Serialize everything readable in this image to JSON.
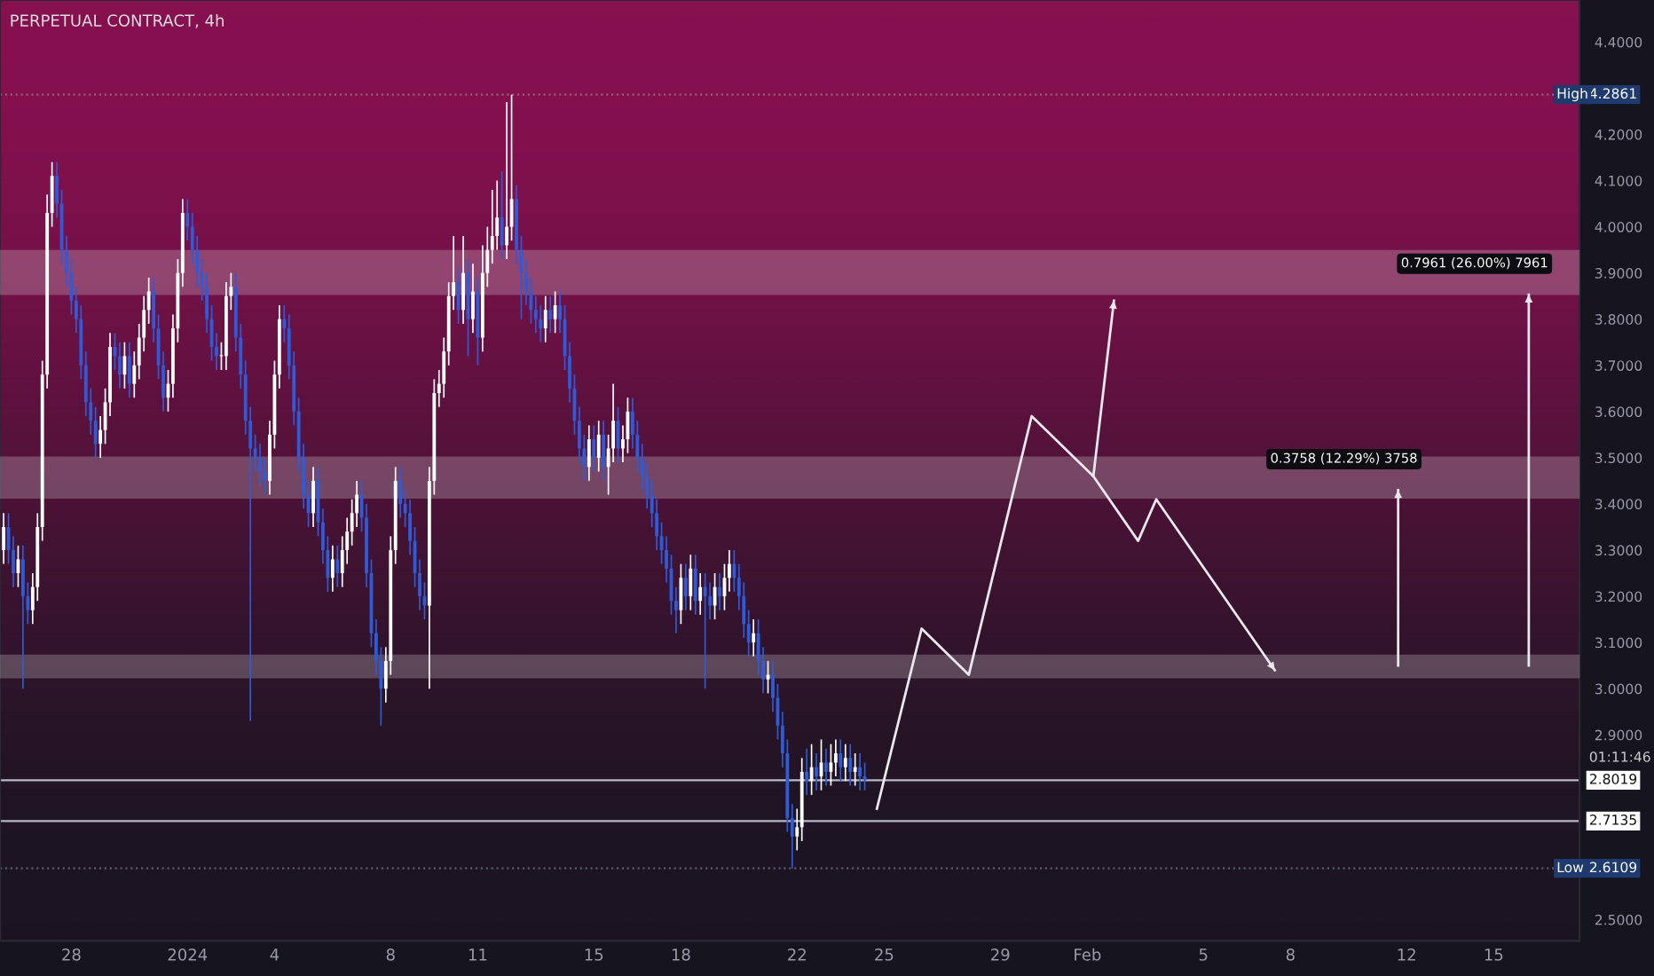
{
  "chart_data": {
    "type": "candlestick",
    "title": "PERPETUAL CONTRACT, 4h",
    "colors": [
      "#ffffff",
      "#2f5bd8",
      "#2f5bd8",
      "#ffffff",
      "#2f5bd8",
      "#2f5bd8",
      "#ffffff",
      "#ffffff",
      "#ffffff",
      "#ffffff",
      "#ffffff",
      "#2f5bd8",
      "#2f5bd8",
      "#2f5bd8",
      "#2f5bd8",
      "#2f5bd8",
      "#2f5bd8",
      "#2f5bd8",
      "#2f5bd8",
      "#2f5bd8",
      "#ffffff",
      "#ffffff",
      "#ffffff",
      "#2f5bd8",
      "#2f5bd8",
      "#ffffff",
      "#2f5bd8",
      "#ffffff",
      "#ffffff",
      "#ffffff",
      "#ffffff",
      "#2f5bd8",
      "#2f5bd8",
      "#2f5bd8",
      "#ffffff",
      "#ffffff",
      "#ffffff",
      "#ffffff",
      "#2f5bd8",
      "#2f5bd8",
      "#2f5bd8",
      "#2f5bd8",
      "#2f5bd8",
      "#2f5bd8",
      "#2f5bd8",
      "#ffffff",
      "#ffffff",
      "#ffffff",
      "#2f5bd8",
      "#2f5bd8",
      "#2f5bd8",
      "#2f5bd8",
      "#2f5bd8",
      "#2f5bd8",
      "#2f5bd8",
      "#ffffff",
      "#ffffff",
      "#ffffff",
      "#2f5bd8",
      "#2f5bd8",
      "#2f5bd8",
      "#2f5bd8",
      "#2f5bd8",
      "#2f5bd8",
      "#ffffff",
      "#2f5bd8",
      "#2f5bd8",
      "#2f5bd8",
      "#ffffff",
      "#2f5bd8",
      "#ffffff",
      "#ffffff",
      "#ffffff",
      "#ffffff",
      "#2f5bd8",
      "#2f5bd8",
      "#2f5bd8",
      "#2f5bd8",
      "#2f5bd8",
      "#ffffff",
      "#ffffff",
      "#ffffff",
      "#2f5bd8",
      "#2f5bd8",
      "#2f5bd8",
      "#2f5bd8",
      "#2f5bd8",
      "#2f5bd8",
      "#ffffff",
      "#ffffff",
      "#ffffff",
      "#ffffff",
      "#ffffff",
      "#ffffff",
      "#2f5bd8",
      "#ffffff",
      "#2f5bd8",
      "#ffffff",
      "#2f5bd8",
      "#ffffff",
      "#ffffff",
      "#ffffff",
      "#ffffff",
      "#2f5bd8",
      "#ffffff",
      "#ffffff",
      "#2f5bd8",
      "#2f5bd8",
      "#2f5bd8",
      "#2f5bd8",
      "#2f5bd8",
      "#2f5bd8",
      "#ffffff",
      "#2f5bd8",
      "#ffffff",
      "#2f5bd8",
      "#2f5bd8",
      "#2f5bd8",
      "#2f5bd8",
      "#2f5bd8",
      "#2f5bd8",
      "#ffffff",
      "#2f5bd8",
      "#ffffff",
      "#2f5bd8",
      "#ffffff",
      "#ffffff",
      "#2f5bd8",
      "#ffffff",
      "#ffffff",
      "#2f5bd8",
      "#2f5bd8",
      "#2f5bd8",
      "#2f5bd8",
      "#2f5bd8",
      "#2f5bd8",
      "#2f5bd8",
      "#2f5bd8",
      "#2f5bd8",
      "#2f5bd8",
      "#ffffff",
      "#2f5bd8",
      "#ffffff",
      "#2f5bd8",
      "#ffffff",
      "#2f5bd8",
      "#2f5bd8",
      "#ffffff",
      "#2f5bd8",
      "#ffffff",
      "#ffffff",
      "#2f5bd8",
      "#2f5bd8",
      "#2f5bd8",
      "#2f5bd8",
      "#ffffff",
      "#2f5bd8",
      "#2f5bd8",
      "#ffffff",
      "#2f5bd8",
      "#2f5bd8",
      "#2f5bd8",
      "#2f5bd8",
      "#2f5bd8",
      "#ffffff",
      "#ffffff",
      "#2f5bd8",
      "#ffffff",
      "#2f5bd8",
      "#ffffff",
      "#2f5bd8",
      "#ffffff",
      "#ffffff",
      "#2f5bd8",
      "#ffffff",
      "#2f5bd8",
      "#ffffff",
      "#2f5bd8",
      "#2f5bd8"
    ],
    "x": [
      "2023-12-25T16:00",
      "2023-12-25T20:00",
      "2023-12-26T00:00",
      "2023-12-26T04:00",
      "2023-12-26T08:00",
      "2023-12-26T12:00",
      "2023-12-26T16:00",
      "2023-12-26T20:00",
      "2023-12-27T00:00",
      "2023-12-27T04:00",
      "2023-12-27T08:00",
      "2023-12-27T12:00",
      "2023-12-27T16:00",
      "2023-12-27T20:00",
      "2023-12-28T00:00",
      "2023-12-28T04:00",
      "2023-12-28T08:00",
      "2023-12-28T12:00",
      "2023-12-28T16:00",
      "2023-12-28T20:00",
      "2023-12-29T00:00",
      "2023-12-29T04:00",
      "2023-12-29T08:00",
      "2023-12-29T12:00",
      "2023-12-29T16:00",
      "2023-12-29T20:00",
      "2023-12-30T00:00",
      "2023-12-30T04:00",
      "2023-12-30T08:00",
      "2023-12-30T12:00",
      "2023-12-30T16:00",
      "2023-12-30T20:00",
      "2023-12-31T00:00",
      "2023-12-31T04:00",
      "2023-12-31T08:00",
      "2023-12-31T12:00",
      "2023-12-31T16:00",
      "2023-12-31T20:00",
      "2024-01-01T00:00",
      "2024-01-01T04:00",
      "2024-01-01T08:00",
      "2024-01-01T12:00",
      "2024-01-01T16:00",
      "2024-01-01T20:00",
      "2024-01-02T00:00",
      "2024-01-02T04:00",
      "2024-01-02T08:00",
      "2024-01-02T12:00",
      "2024-01-02T16:00",
      "2024-01-02T20:00",
      "2024-01-03T00:00",
      "2024-01-03T04:00",
      "2024-01-03T08:00",
      "2024-01-03T12:00",
      "2024-01-03T16:00",
      "2024-01-03T20:00",
      "2024-01-04T00:00",
      "2024-01-04T04:00",
      "2024-01-04T08:00",
      "2024-01-04T12:00",
      "2024-01-04T16:00",
      "2024-01-04T20:00",
      "2024-01-05T00:00",
      "2024-01-05T04:00",
      "2024-01-05T08:00",
      "2024-01-05T12:00",
      "2024-01-05T16:00",
      "2024-01-05T20:00",
      "2024-01-06T00:00",
      "2024-01-06T04:00",
      "2024-01-06T08:00",
      "2024-01-06T12:00",
      "2024-01-06T16:00",
      "2024-01-06T20:00",
      "2024-01-07T00:00",
      "2024-01-07T04:00",
      "2024-01-07T08:00",
      "2024-01-07T12:00",
      "2024-01-07T16:00",
      "2024-01-07T20:00",
      "2024-01-08T00:00",
      "2024-01-08T04:00",
      "2024-01-08T08:00",
      "2024-01-08T12:00",
      "2024-01-08T16:00",
      "2024-01-08T20:00",
      "2024-01-09T00:00",
      "2024-01-09T04:00",
      "2024-01-09T08:00",
      "2024-01-09T12:00",
      "2024-01-09T16:00",
      "2024-01-09T20:00",
      "2024-01-10T00:00",
      "2024-01-10T04:00",
      "2024-01-10T08:00",
      "2024-01-10T12:00",
      "2024-01-10T16:00",
      "2024-01-10T20:00",
      "2024-01-11T00:00",
      "2024-01-11T04:00",
      "2024-01-11T08:00",
      "2024-01-11T12:00",
      "2024-01-11T16:00",
      "2024-01-11T20:00",
      "2024-01-12T00:00",
      "2024-01-12T04:00",
      "2024-01-12T08:00",
      "2024-01-12T12:00",
      "2024-01-12T16:00",
      "2024-01-12T20:00",
      "2024-01-13T00:00",
      "2024-01-13T04:00",
      "2024-01-13T08:00",
      "2024-01-13T12:00",
      "2024-01-13T16:00",
      "2024-01-13T20:00",
      "2024-01-14T00:00",
      "2024-01-14T04:00",
      "2024-01-14T08:00",
      "2024-01-14T12:00",
      "2024-01-14T16:00",
      "2024-01-14T20:00",
      "2024-01-15T00:00",
      "2024-01-15T04:00",
      "2024-01-15T08:00",
      "2024-01-15T12:00",
      "2024-01-15T16:00",
      "2024-01-15T20:00",
      "2024-01-16T00:00",
      "2024-01-16T04:00",
      "2024-01-16T08:00",
      "2024-01-16T12:00",
      "2024-01-16T16:00",
      "2024-01-16T20:00",
      "2024-01-17T00:00",
      "2024-01-17T04:00",
      "2024-01-17T08:00",
      "2024-01-17T12:00",
      "2024-01-17T16:00",
      "2024-01-17T20:00",
      "2024-01-18T00:00",
      "2024-01-18T04:00",
      "2024-01-18T08:00",
      "2024-01-18T12:00",
      "2024-01-18T16:00",
      "2024-01-18T20:00",
      "2024-01-19T00:00",
      "2024-01-19T04:00",
      "2024-01-19T08:00",
      "2024-01-19T12:00",
      "2024-01-19T16:00",
      "2024-01-19T20:00",
      "2024-01-20T00:00",
      "2024-01-20T04:00",
      "2024-01-20T08:00",
      "2024-01-20T12:00",
      "2024-01-20T16:00",
      "2024-01-20T20:00",
      "2024-01-21T00:00",
      "2024-01-21T04:00",
      "2024-01-21T08:00",
      "2024-01-21T12:00",
      "2024-01-21T16:00",
      "2024-01-21T20:00",
      "2024-01-22T00:00",
      "2024-01-22T04:00",
      "2024-01-22T08:00",
      "2024-01-22T12:00",
      "2024-01-22T16:00",
      "2024-01-22T20:00",
      "2024-01-23T00:00",
      "2024-01-23T04:00",
      "2024-01-23T08:00",
      "2024-01-23T12:00",
      "2024-01-23T16:00",
      "2024-01-23T20:00",
      "2024-01-24T00:00",
      "2024-01-24T04:00",
      "2024-01-24T08:00"
    ],
    "ohlc": [
      [
        3.3,
        3.38,
        3.27,
        3.35
      ],
      [
        3.35,
        3.38,
        3.27,
        3.3
      ],
      [
        3.3,
        3.33,
        3.22,
        3.25
      ],
      [
        3.25,
        3.31,
        3.22,
        3.28
      ],
      [
        3.28,
        3.31,
        3.0,
        3.2
      ],
      [
        3.2,
        3.23,
        3.14,
        3.17
      ],
      [
        3.17,
        3.25,
        3.14,
        3.22
      ],
      [
        3.22,
        3.38,
        3.19,
        3.35
      ],
      [
        3.35,
        3.71,
        3.32,
        3.68
      ],
      [
        3.68,
        4.07,
        3.65,
        4.03
      ],
      [
        4.03,
        4.14,
        4.0,
        4.11
      ],
      [
        4.11,
        4.14,
        4.02,
        4.05
      ],
      [
        4.05,
        4.08,
        3.92,
        3.95
      ],
      [
        3.95,
        3.98,
        3.87,
        3.9
      ],
      [
        3.9,
        3.93,
        3.81,
        3.84
      ],
      [
        3.84,
        3.87,
        3.77,
        3.8
      ],
      [
        3.8,
        3.83,
        3.67,
        3.7
      ],
      [
        3.7,
        3.73,
        3.59,
        3.62
      ],
      [
        3.62,
        3.65,
        3.55,
        3.58
      ],
      [
        3.58,
        3.61,
        3.5,
        3.53
      ],
      [
        3.53,
        3.59,
        3.5,
        3.56
      ],
      [
        3.56,
        3.65,
        3.53,
        3.62
      ],
      [
        3.62,
        3.77,
        3.59,
        3.74
      ],
      [
        3.74,
        3.77,
        3.69,
        3.72
      ],
      [
        3.72,
        3.75,
        3.65,
        3.68
      ],
      [
        3.68,
        3.75,
        3.65,
        3.72
      ],
      [
        3.72,
        3.75,
        3.63,
        3.66
      ],
      [
        3.66,
        3.73,
        3.63,
        3.7
      ],
      [
        3.7,
        3.79,
        3.67,
        3.76
      ],
      [
        3.76,
        3.85,
        3.73,
        3.82
      ],
      [
        3.82,
        3.89,
        3.79,
        3.86
      ],
      [
        3.86,
        3.89,
        3.75,
        3.78
      ],
      [
        3.78,
        3.81,
        3.67,
        3.7
      ],
      [
        3.7,
        3.73,
        3.6,
        3.63
      ],
      [
        3.63,
        3.69,
        3.6,
        3.66
      ],
      [
        3.66,
        3.81,
        3.63,
        3.78
      ],
      [
        3.78,
        3.93,
        3.75,
        3.9
      ],
      [
        3.9,
        4.06,
        3.87,
        4.03
      ],
      [
        4.03,
        4.06,
        3.97,
        4.0
      ],
      [
        4.0,
        4.03,
        3.92,
        3.95
      ],
      [
        3.95,
        3.98,
        3.87,
        3.9
      ],
      [
        3.9,
        3.93,
        3.84,
        3.87
      ],
      [
        3.87,
        3.9,
        3.77,
        3.8
      ],
      [
        3.8,
        3.83,
        3.71,
        3.74
      ],
      [
        3.74,
        3.77,
        3.69,
        3.72
      ],
      [
        3.72,
        3.75,
        3.69,
        3.72
      ],
      [
        3.72,
        3.88,
        3.69,
        3.85
      ],
      [
        3.85,
        3.9,
        3.82,
        3.87
      ],
      [
        3.87,
        3.9,
        3.73,
        3.76
      ],
      [
        3.76,
        3.79,
        3.65,
        3.68
      ],
      [
        3.68,
        3.71,
        3.55,
        3.58
      ],
      [
        3.58,
        3.61,
        2.93,
        3.52
      ],
      [
        3.52,
        3.55,
        3.47,
        3.5
      ],
      [
        3.5,
        3.53,
        3.44,
        3.47
      ],
      [
        3.47,
        3.5,
        3.42,
        3.45
      ],
      [
        3.45,
        3.58,
        3.42,
        3.55
      ],
      [
        3.55,
        3.71,
        3.52,
        3.68
      ],
      [
        3.68,
        3.83,
        3.65,
        3.8
      ],
      [
        3.8,
        3.83,
        3.75,
        3.78
      ],
      [
        3.78,
        3.81,
        3.67,
        3.7
      ],
      [
        3.7,
        3.73,
        3.57,
        3.6
      ],
      [
        3.6,
        3.63,
        3.47,
        3.5
      ],
      [
        3.5,
        3.53,
        3.39,
        3.42
      ],
      [
        3.42,
        3.45,
        3.35,
        3.38
      ],
      [
        3.38,
        3.48,
        3.35,
        3.45
      ],
      [
        3.45,
        3.48,
        3.33,
        3.36
      ],
      [
        3.36,
        3.39,
        3.27,
        3.3
      ],
      [
        3.3,
        3.33,
        3.21,
        3.24
      ],
      [
        3.24,
        3.31,
        3.21,
        3.28
      ],
      [
        3.28,
        3.31,
        3.22,
        3.25
      ],
      [
        3.25,
        3.33,
        3.22,
        3.3
      ],
      [
        3.3,
        3.37,
        3.27,
        3.34
      ],
      [
        3.34,
        3.41,
        3.31,
        3.38
      ],
      [
        3.38,
        3.45,
        3.35,
        3.42
      ],
      [
        3.42,
        3.45,
        3.34,
        3.37
      ],
      [
        3.37,
        3.4,
        3.22,
        3.25
      ],
      [
        3.25,
        3.28,
        3.09,
        3.12
      ],
      [
        3.12,
        3.15,
        3.03,
        3.06
      ],
      [
        3.06,
        3.09,
        2.92,
        3.0
      ],
      [
        3.0,
        3.09,
        2.97,
        3.06
      ],
      [
        3.06,
        3.33,
        3.03,
        3.3
      ],
      [
        3.3,
        3.48,
        3.27,
        3.45
      ],
      [
        3.45,
        3.48,
        3.37,
        3.4
      ],
      [
        3.4,
        3.43,
        3.35,
        3.38
      ],
      [
        3.38,
        3.41,
        3.29,
        3.32
      ],
      [
        3.32,
        3.35,
        3.22,
        3.25
      ],
      [
        3.25,
        3.28,
        3.17,
        3.2
      ],
      [
        3.2,
        3.23,
        3.15,
        3.18
      ],
      [
        3.18,
        3.48,
        3.0,
        3.45
      ],
      [
        3.45,
        3.67,
        3.42,
        3.64
      ],
      [
        3.64,
        3.69,
        3.61,
        3.66
      ],
      [
        3.66,
        3.76,
        3.63,
        3.73
      ],
      [
        3.73,
        3.88,
        3.7,
        3.85
      ],
      [
        3.85,
        3.98,
        3.82,
        3.88
      ],
      [
        3.88,
        3.91,
        3.79,
        3.82
      ],
      [
        3.82,
        3.98,
        3.79,
        3.9
      ],
      [
        3.9,
        3.93,
        3.72,
        3.8
      ],
      [
        3.8,
        3.92,
        3.77,
        3.86
      ],
      [
        3.86,
        3.89,
        3.7,
        3.76
      ],
      [
        3.76,
        3.96,
        3.73,
        3.9
      ],
      [
        3.9,
        4.0,
        3.87,
        3.95
      ],
      [
        3.95,
        4.08,
        3.92,
        3.98
      ],
      [
        3.98,
        4.1,
        3.95,
        4.02
      ],
      [
        4.02,
        4.12,
        3.93,
        3.96
      ],
      [
        3.96,
        4.27,
        3.93,
        4.0
      ],
      [
        4.0,
        4.2861,
        3.97,
        4.06
      ],
      [
        4.06,
        4.09,
        3.92,
        3.95
      ],
      [
        3.95,
        3.98,
        3.8,
        3.9
      ],
      [
        3.9,
        3.93,
        3.83,
        3.86
      ],
      [
        3.86,
        3.89,
        3.79,
        3.82
      ],
      [
        3.82,
        3.85,
        3.77,
        3.8
      ],
      [
        3.8,
        3.83,
        3.75,
        3.78
      ],
      [
        3.78,
        3.85,
        3.75,
        3.82
      ],
      [
        3.82,
        3.85,
        3.77,
        3.8
      ],
      [
        3.8,
        3.86,
        3.77,
        3.83
      ],
      [
        3.83,
        3.86,
        3.77,
        3.8
      ],
      [
        3.8,
        3.83,
        3.69,
        3.72
      ],
      [
        3.72,
        3.75,
        3.62,
        3.65
      ],
      [
        3.65,
        3.68,
        3.55,
        3.58
      ],
      [
        3.58,
        3.61,
        3.49,
        3.52
      ],
      [
        3.52,
        3.55,
        3.45,
        3.48
      ],
      [
        3.48,
        3.57,
        3.45,
        3.54
      ],
      [
        3.54,
        3.57,
        3.47,
        3.5
      ],
      [
        3.5,
        3.58,
        3.47,
        3.55
      ],
      [
        3.55,
        3.58,
        3.45,
        3.48
      ],
      [
        3.48,
        3.55,
        3.42,
        3.52
      ],
      [
        3.52,
        3.66,
        3.49,
        3.58
      ],
      [
        3.58,
        3.61,
        3.49,
        3.52
      ],
      [
        3.52,
        3.57,
        3.49,
        3.54
      ],
      [
        3.54,
        3.63,
        3.51,
        3.6
      ],
      [
        3.6,
        3.63,
        3.52,
        3.55
      ],
      [
        3.55,
        3.58,
        3.47,
        3.5
      ],
      [
        3.5,
        3.53,
        3.43,
        3.46
      ],
      [
        3.46,
        3.49,
        3.39,
        3.42
      ],
      [
        3.42,
        3.45,
        3.35,
        3.38
      ],
      [
        3.38,
        3.41,
        3.3,
        3.33
      ],
      [
        3.33,
        3.36,
        3.27,
        3.3
      ],
      [
        3.3,
        3.33,
        3.23,
        3.26
      ],
      [
        3.26,
        3.29,
        3.16,
        3.19
      ],
      [
        3.19,
        3.22,
        3.12,
        3.17
      ],
      [
        3.17,
        3.27,
        3.14,
        3.24
      ],
      [
        3.24,
        3.27,
        3.17,
        3.2
      ],
      [
        3.2,
        3.29,
        3.17,
        3.26
      ],
      [
        3.26,
        3.29,
        3.16,
        3.19
      ],
      [
        3.19,
        3.25,
        3.16,
        3.22
      ],
      [
        3.22,
        3.25,
        3.0,
        3.2
      ],
      [
        3.2,
        3.23,
        3.15,
        3.18
      ],
      [
        3.18,
        3.25,
        3.15,
        3.22
      ],
      [
        3.22,
        3.25,
        3.17,
        3.2
      ],
      [
        3.2,
        3.27,
        3.17,
        3.24
      ],
      [
        3.24,
        3.3,
        3.21,
        3.27
      ],
      [
        3.27,
        3.3,
        3.21,
        3.24
      ],
      [
        3.24,
        3.27,
        3.17,
        3.2
      ],
      [
        3.2,
        3.23,
        3.11,
        3.14
      ],
      [
        3.14,
        3.17,
        3.07,
        3.1
      ],
      [
        3.1,
        3.15,
        3.07,
        3.12
      ],
      [
        3.12,
        3.15,
        3.03,
        3.06
      ],
      [
        3.06,
        3.09,
        2.99,
        3.02
      ],
      [
        3.02,
        3.06,
        2.99,
        3.03
      ],
      [
        3.03,
        3.06,
        2.95,
        2.98
      ],
      [
        2.98,
        3.01,
        2.89,
        2.92
      ],
      [
        2.92,
        2.95,
        2.83,
        2.86
      ],
      [
        2.86,
        2.89,
        2.69,
        2.72
      ],
      [
        2.72,
        2.75,
        2.6109,
        2.68
      ],
      [
        2.68,
        2.74,
        2.65,
        2.7
      ],
      [
        2.7,
        2.85,
        2.67,
        2.82
      ],
      [
        2.82,
        2.87,
        2.77,
        2.8
      ],
      [
        2.8,
        2.88,
        2.77,
        2.83
      ],
      [
        2.83,
        2.86,
        2.78,
        2.81
      ],
      [
        2.81,
        2.89,
        2.78,
        2.84
      ],
      [
        2.84,
        2.87,
        2.79,
        2.82
      ],
      [
        2.82,
        2.88,
        2.79,
        2.84
      ],
      [
        2.84,
        2.89,
        2.81,
        2.86
      ],
      [
        2.86,
        2.89,
        2.8,
        2.83
      ],
      [
        2.83,
        2.88,
        2.8,
        2.85
      ],
      [
        2.85,
        2.88,
        2.79,
        2.82
      ],
      [
        2.82,
        2.86,
        2.79,
        2.83
      ],
      [
        2.83,
        2.86,
        2.78,
        2.81
      ],
      [
        2.81,
        2.84,
        2.78,
        2.8019
      ]
    ],
    "series": [
      {
        "type": "line",
        "color": "#e8e8ee",
        "x": [
          "2024-01-24T18:00",
          "2024-01-26T07:00",
          "2024-01-27T22:00",
          "2024-01-30T02:00",
          "2024-02-01T05:00",
          "2024-02-02T18:00",
          "2024-02-03T09:00",
          "2024-02-07T11:00"
        ],
        "values": [
          2.74,
          3.13,
          3.03,
          3.59,
          3.46,
          3.32,
          3.41,
          3.04
        ]
      },
      {
        "type": "line",
        "color": "#e8e8ee",
        "x": [
          "2024-02-01T05:00",
          "2024-02-01T22:00"
        ],
        "values": [
          3.46,
          3.84
        ]
      },
      {
        "type": "line",
        "color": "#e8e8ee",
        "name": "0.3758 (12.29%) 3758",
        "x": [
          "2024-02-11T17:00",
          "2024-02-11T17:00"
        ],
        "values": [
          3.05,
          3.43
        ]
      },
      {
        "type": "line",
        "color": "#e8e8ee",
        "name": "0.7961 (26.00%) 7961",
        "x": [
          "2024-02-16T05:00",
          "2024-02-16T05:00"
        ],
        "values": [
          3.05,
          3.853
        ]
      }
    ],
    "bands": [
      {
        "axis": "y",
        "from": 3.855,
        "to": 3.947,
        "label": null,
        "color": "#ffffff"
      },
      {
        "axis": "y",
        "from": 3.414,
        "to": 3.5,
        "label": null,
        "color": "#ffffff"
      },
      {
        "axis": "y",
        "from": 3.025,
        "to": 3.071,
        "label": null,
        "color": "#ffffff"
      }
    ],
    "ref_lines": [
      {
        "axis": "y",
        "value": 4.2861,
        "label": "4.2861",
        "color": "#9a5b80",
        "line_style": "dotted"
      },
      {
        "axis": "y",
        "value": 2.8019,
        "label": "2.8019",
        "color": "#b8b8c8",
        "line_style": "solid"
      },
      {
        "axis": "y",
        "value": 2.7135,
        "label": "2.7135",
        "color": "#b8b8c8",
        "line_style": "solid"
      },
      {
        "axis": "y",
        "value": 2.6109,
        "label": "2.6109",
        "color": "#5a5a6a",
        "line_style": "dotted"
      }
    ],
    "annotations": [
      {
        "text": "High",
        "x": "2024-02-17T04:00",
        "y": 4.2861
      },
      "01:11:46",
      {
        "text": "Low",
        "x": "2024-02-17T04:00",
        "y": 2.6109
      }
    ],
    "xlim": [
      "2023-12-25T13:00",
      "2024-02-17T23:00"
    ],
    "xticks": [
      {
        "value": "2023-12-28",
        "label": "28"
      },
      {
        "value": "2024-01-01",
        "label": "2024"
      },
      {
        "value": "2024-01-04",
        "label": "4"
      },
      {
        "value": "2024-01-08",
        "label": "8"
      },
      {
        "value": "2024-01-11",
        "label": "11"
      },
      {
        "value": "2024-01-15",
        "label": "15"
      },
      {
        "value": "2024-01-18",
        "label": "18"
      },
      {
        "value": "2024-01-22",
        "label": "22"
      },
      {
        "value": "2024-01-25",
        "label": "25"
      },
      {
        "value": "2024-01-29",
        "label": "29"
      },
      {
        "value": "2024-02-01",
        "label": "Feb"
      },
      {
        "value": "2024-02-05",
        "label": "5"
      },
      {
        "value": "2024-02-08",
        "label": "8"
      },
      {
        "value": "2024-02-12",
        "label": "12"
      },
      {
        "value": "2024-02-15",
        "label": "15"
      }
    ],
    "ylim": [
      2.454,
      4.491
    ],
    "yticks": [
      {
        "value": 2.5,
        "label": "2.5000"
      },
      {
        "value": 2.9,
        "label": "2.9000"
      },
      {
        "value": 3.0,
        "label": "3.0000"
      },
      {
        "value": 3.1,
        "label": "3.1000"
      },
      {
        "value": 3.2,
        "label": "3.2000"
      },
      {
        "value": 3.3,
        "label": "3.3000"
      },
      {
        "value": 3.4,
        "label": "3.4000"
      },
      {
        "value": 3.5,
        "label": "3.5000"
      },
      {
        "value": 3.6,
        "label": "3.6000"
      },
      {
        "value": 3.7,
        "label": "3.7000"
      },
      {
        "value": 3.8,
        "label": "3.8000"
      },
      {
        "value": 3.9,
        "label": "3.9000"
      },
      {
        "value": 4.0,
        "label": "4.0000"
      },
      {
        "value": 4.1,
        "label": "4.1000"
      },
      {
        "value": 4.2,
        "label": "4.2000"
      },
      {
        "value": 4.4,
        "label": "4.4000"
      }
    ],
    "grid": false,
    "legend": false
  }
}
